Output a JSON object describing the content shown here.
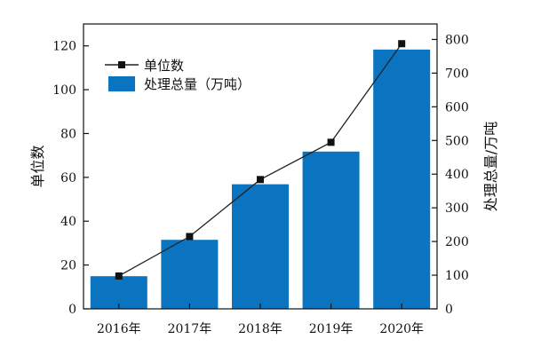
{
  "chart_data": {
    "type": "bar",
    "categories": [
      "2016年",
      "2017年",
      "2018年",
      "2019年",
      "2020年"
    ],
    "series": [
      {
        "name": "单位数",
        "type": "line",
        "axis": "left",
        "values": [
          15,
          33,
          59,
          76,
          121
        ]
      },
      {
        "name": "处理总量（万吨）",
        "type": "bar",
        "axis": "right",
        "values": [
          97,
          205,
          370,
          467,
          770
        ]
      }
    ],
    "ylabel": "单位数",
    "ylabel_right": "处理总量/万吨",
    "ylim": [
      0,
      130
    ],
    "ylim_right": [
      0,
      846
    ],
    "yticks": [
      0,
      20,
      40,
      60,
      80,
      100,
      120
    ],
    "yticks_right": [
      0,
      100,
      200,
      300,
      400,
      500,
      600,
      700,
      800
    ],
    "grid": false,
    "legend_position": "top-left",
    "colors": {
      "bar": "#0A74C1",
      "line": "#222222",
      "marker": "#111111"
    }
  }
}
